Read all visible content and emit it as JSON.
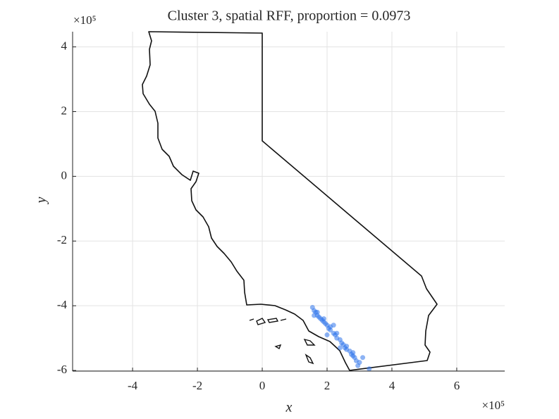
{
  "chart_data": {
    "type": "scatter",
    "title": "Cluster 3, spatial RFF, proportion = 0.0973",
    "x_label": "x",
    "y_label": "y",
    "x_exponent": "×10⁵",
    "y_exponent": "×10⁵",
    "xlim": [
      -5.85,
      7.48
    ],
    "ylim": [
      -6.02,
      4.47
    ],
    "xticks": [
      -4,
      -2,
      0,
      2,
      4,
      6
    ],
    "yticks": [
      -6,
      -4,
      -2,
      0,
      2,
      4
    ],
    "grid": true,
    "color": "#2f74eb",
    "x": [
      1.55,
      1.6,
      1.65,
      1.7,
      1.75,
      1.8,
      1.85,
      1.9,
      1.95,
      2.0,
      2.05,
      2.1,
      2.2,
      2.25,
      2.3,
      2.4,
      2.45,
      2.5,
      2.55,
      2.6,
      2.7,
      2.75,
      2.8,
      2.85,
      2.9,
      3.0,
      1.7,
      1.9,
      2.1,
      2.3,
      2.6,
      2.8,
      3.1,
      3.3,
      2.0,
      2.4,
      1.6,
      2.2,
      2.95
    ],
    "y": [
      -4.05,
      -4.15,
      -4.2,
      -4.3,
      -4.35,
      -4.4,
      -4.45,
      -4.5,
      -4.55,
      -4.6,
      -4.7,
      -4.75,
      -4.85,
      -4.9,
      -5.0,
      -5.05,
      -5.15,
      -5.2,
      -5.3,
      -5.35,
      -5.4,
      -5.5,
      -5.55,
      -5.6,
      -5.7,
      -5.75,
      -4.2,
      -4.4,
      -4.65,
      -4.85,
      -5.25,
      -5.45,
      -5.6,
      -5.95,
      -4.9,
      -5.3,
      -4.3,
      -4.6,
      -5.85
    ]
  }
}
